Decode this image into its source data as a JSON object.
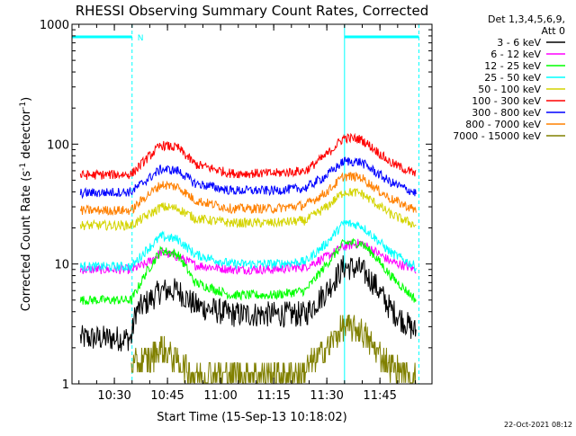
{
  "chart_data": {
    "type": "line",
    "title": "RHESSI Observing Summary Count Rates, Corrected",
    "xlabel": "Start Time (15-Sep-13 10:18:02)",
    "ylabel_parts": [
      "Corrected Count Rate (s",
      "-1",
      " detector",
      "-1",
      ")"
    ],
    "yscale": "log",
    "ylim": [
      1,
      1000
    ],
    "xlim": [
      10.3006,
      11.995
    ],
    "x_ticks": [
      {
        "x": 10.5,
        "label": "10:30"
      },
      {
        "x": 10.75,
        "label": "10:45"
      },
      {
        "x": 11.0,
        "label": "11:00"
      },
      {
        "x": 11.25,
        "label": "11:15"
      },
      {
        "x": 11.5,
        "label": "11:30"
      },
      {
        "x": 11.75,
        "label": "11:45"
      }
    ],
    "y_ticks": [
      {
        "y": 1,
        "label": "1"
      },
      {
        "y": 10,
        "label": "10"
      },
      {
        "y": 100,
        "label": "100"
      },
      {
        "y": 1000,
        "label": "1000"
      }
    ],
    "legend_header": [
      "Det 1,3,4,5,6,9,",
      "Att 0"
    ],
    "legend_placement": "right",
    "night_marker": "N",
    "day_intervals": [
      [
        10.3006,
        10.5833
      ],
      [
        11.5833,
        11.9333
      ]
    ],
    "vertical_markers": [
      10.3006,
      10.5833,
      11.5833,
      11.9333
    ],
    "series": [
      {
        "name": "3 - 6 keV",
        "color": "#000000",
        "x": [
          10.34,
          10.58,
          10.6,
          10.72,
          10.8,
          10.88,
          11.05,
          11.25,
          11.4,
          11.5,
          11.58,
          11.66,
          11.72,
          11.8,
          11.92
        ],
        "values": [
          2.4,
          2.4,
          4.0,
          6.0,
          6.0,
          4.5,
          3.8,
          3.8,
          3.8,
          6.0,
          9.5,
          9.0,
          7.0,
          4.2,
          2.7
        ]
      },
      {
        "name": "6 - 12 keV",
        "color": "#ff00ff",
        "x": [
          10.34,
          10.58,
          10.65,
          10.72,
          10.8,
          10.88,
          11.05,
          11.25,
          11.4,
          11.5,
          11.58,
          11.66,
          11.72,
          11.8,
          11.92
        ],
        "values": [
          9.0,
          9.0,
          10.0,
          12.5,
          11.5,
          9.8,
          9.0,
          9.0,
          9.5,
          11.5,
          14.0,
          15.0,
          13.0,
          10.5,
          9.0
        ]
      },
      {
        "name": "12 - 25 keV",
        "color": "#00ff00",
        "x": [
          10.34,
          10.58,
          10.65,
          10.72,
          10.8,
          10.88,
          11.05,
          11.25,
          11.4,
          11.5,
          11.58,
          11.66,
          11.72,
          11.8,
          11.92
        ],
        "values": [
          5.0,
          5.0,
          8.5,
          13.0,
          12.0,
          7.0,
          5.5,
          5.5,
          6.0,
          10.0,
          15.0,
          15.0,
          12.0,
          8.0,
          5.0
        ]
      },
      {
        "name": "25 - 50 keV",
        "color": "#00ffff",
        "x": [
          10.34,
          10.58,
          10.65,
          10.72,
          10.8,
          10.88,
          11.05,
          11.25,
          11.4,
          11.5,
          11.58,
          11.66,
          11.72,
          11.8,
          11.92
        ],
        "values": [
          9.5,
          9.5,
          13.0,
          17.0,
          16.0,
          12.0,
          10.0,
          10.0,
          10.5,
          15.0,
          22.0,
          21.0,
          17.0,
          12.5,
          9.5
        ]
      },
      {
        "name": "50 - 100 keV",
        "color": "#d4d400",
        "x": [
          10.34,
          10.58,
          10.65,
          10.72,
          10.8,
          10.88,
          11.05,
          11.25,
          11.4,
          11.5,
          11.58,
          11.66,
          11.72,
          11.8,
          11.92
        ],
        "values": [
          21,
          21,
          25,
          30,
          29,
          24,
          22,
          22,
          23,
          30,
          40,
          39,
          33,
          26,
          21
        ]
      },
      {
        "name": "100 - 300 keV",
        "color": "#ff0000",
        "x": [
          10.34,
          10.58,
          10.65,
          10.72,
          10.8,
          10.88,
          11.05,
          11.25,
          11.4,
          11.5,
          11.58,
          11.66,
          11.72,
          11.8,
          11.92
        ],
        "values": [
          55,
          56,
          75,
          98,
          93,
          68,
          57,
          57,
          60,
          82,
          113,
          110,
          92,
          70,
          56
        ]
      },
      {
        "name": "300 - 800 keV",
        "color": "#0000ff",
        "x": [
          10.34,
          10.58,
          10.65,
          10.72,
          10.8,
          10.88,
          11.05,
          11.25,
          11.4,
          11.5,
          11.58,
          11.66,
          11.72,
          11.8,
          11.92
        ],
        "values": [
          39,
          40,
          50,
          62,
          60,
          47,
          41,
          41,
          43,
          55,
          72,
          71,
          60,
          48,
          39
        ]
      },
      {
        "name": "800 - 7000 keV",
        "color": "#ff8000",
        "x": [
          10.34,
          10.58,
          10.65,
          10.72,
          10.8,
          10.88,
          11.05,
          11.25,
          11.4,
          11.5,
          11.58,
          11.66,
          11.72,
          11.8,
          11.92
        ],
        "values": [
          28,
          28,
          37,
          46,
          44,
          34,
          29,
          29,
          31,
          40,
          54,
          53,
          44,
          35,
          28
        ]
      },
      {
        "name": "7000 - 15000 keV",
        "color": "#808000",
        "x": [
          10.58,
          10.66,
          10.72,
          10.78,
          10.88,
          11.38,
          11.5,
          11.58,
          11.66,
          11.72,
          11.8,
          11.92
        ],
        "values": [
          1.4,
          1.6,
          2.0,
          1.6,
          1.2,
          1.2,
          2.0,
          3.0,
          2.8,
          2.0,
          1.4,
          1.1
        ]
      }
    ]
  },
  "footer": {
    "timestamp": "22-Oct-2021 08:12"
  }
}
